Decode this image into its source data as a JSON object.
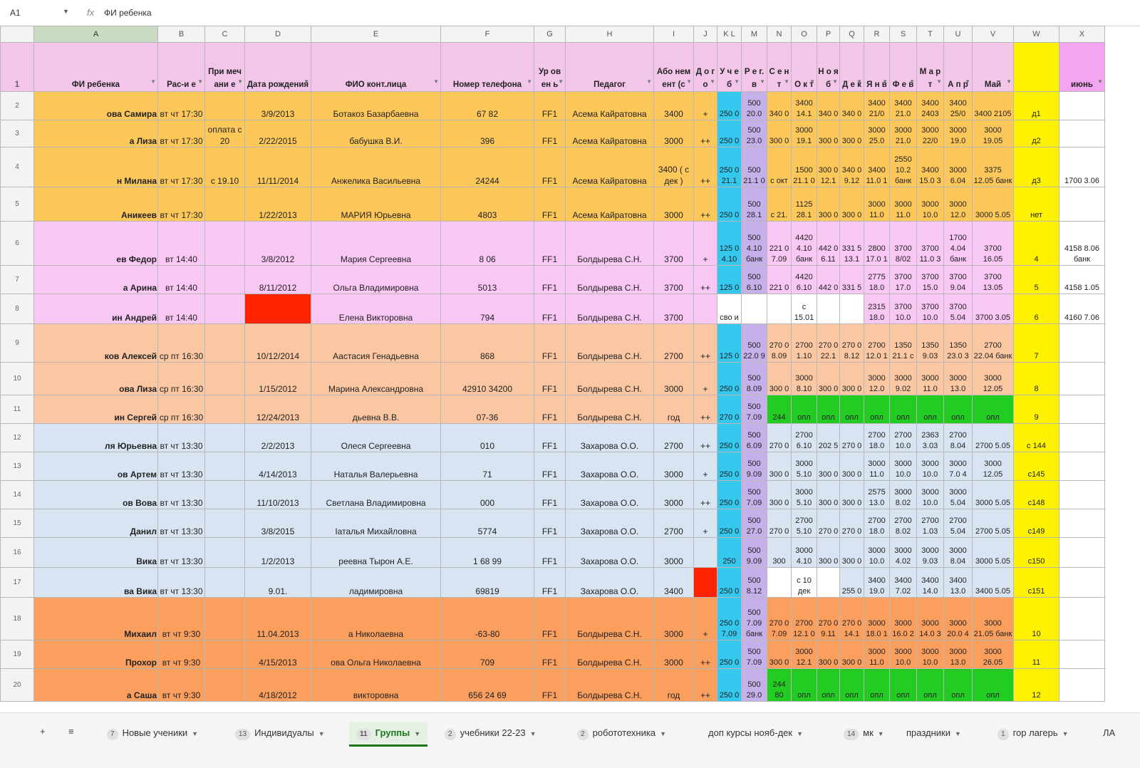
{
  "formula_bar": {
    "cell_ref": "A1",
    "formula": "ФИ ребенка"
  },
  "columns": [
    {
      "letter": "A",
      "w": 174
    },
    {
      "letter": "B",
      "w": 66
    },
    {
      "letter": "C",
      "w": 56
    },
    {
      "letter": "D",
      "w": 93
    },
    {
      "letter": "E",
      "w": 182
    },
    {
      "letter": "F",
      "w": 131
    },
    {
      "letter": "G",
      "w": 44
    },
    {
      "letter": "H",
      "w": 124
    },
    {
      "letter": "I",
      "w": 56
    },
    {
      "letter": "J",
      "w": 33
    },
    {
      "letter": "K L",
      "w": 34
    },
    {
      "letter": "M",
      "w": 36
    },
    {
      "letter": "N",
      "w": 34
    },
    {
      "letter": "O",
      "w": 36
    },
    {
      "letter": "P",
      "w": 32
    },
    {
      "letter": "Q",
      "w": 34
    },
    {
      "letter": "R",
      "w": 36
    },
    {
      "letter": "S",
      "w": 38
    },
    {
      "letter": "T",
      "w": 38
    },
    {
      "letter": "U",
      "w": 40
    },
    {
      "letter": "V",
      "w": 58
    },
    {
      "letter": "W",
      "w": 64
    },
    {
      "letter": "X",
      "w": 64
    }
  ],
  "header": [
    "ФИ ребенка",
    "Рас-и е",
    "При меч ани е",
    "Дата рождения",
    "ФИО конт.лица",
    "Номер телефона",
    "Ур ов ен ь",
    "Педагог",
    "Або нем ент (с",
    "Д о г о",
    "У ч е б",
    "Р е г. в",
    "С е н т",
    "О к т",
    "Н о я б",
    "Д е к",
    "Я н в",
    "Ф е в",
    "М а р т",
    "А п р",
    "Май",
    "",
    "июнь"
  ],
  "rows": [
    {
      "num": "2",
      "color": "#fdc75a",
      "cells": [
        "ова Самира",
        "вт чт 17:30",
        "",
        "3/9/2013",
        "Ботакоз Базарбаевна",
        "67 82",
        "FF1",
        "Асема Кайратовна",
        "3400",
        "+",
        "250 0",
        "500 20.0",
        "340 0",
        "3400 14.1",
        "340 0",
        "340 0",
        "3400 21/0",
        "3400 21.0",
        "3400 2403",
        "3400 25/0",
        "3400 2105",
        "д1",
        ""
      ]
    },
    {
      "num": "3",
      "color": "#fdc75a",
      "cells": [
        "а Лиза",
        "вт чт 17:30",
        "оплата с 20",
        "2/22/2015",
        "бабушка В.И.",
        "396",
        "FF1",
        "Асема Кайратовна",
        "3000",
        "++",
        "250 0",
        "500 23.0",
        "300 0",
        "3000 19.1",
        "300 0",
        "300 0",
        "3000 25.0",
        "3000 21.0",
        "3000 22/0",
        "3000 19.0",
        "3000 19.05",
        "д2",
        ""
      ]
    },
    {
      "num": "4",
      "color": "#fdc75a",
      "cells": [
        "н Милана",
        "вт чт 17:30",
        "с 19.10",
        "11/11/2014",
        "Анжелика Васильевна",
        "24244",
        "FF1",
        "Асема Кайратовна",
        "3400 ( с дек )",
        "++",
        "250 0 21.1",
        "500 21.1 0",
        "с окт",
        "1500 21.1 0",
        "300 0 12.1",
        "340 0 9.12",
        "3400 11.0 1",
        "2550 10.2 банк",
        "3400 15.0 3",
        "3000 6.04",
        "3375 12.05 банк",
        "д3",
        "1700 3.06"
      ]
    },
    {
      "num": "5",
      "color": "#fdc75a",
      "cells": [
        "Аникеев",
        "вт чт 17:30",
        "",
        "1/22/2013",
        "МАРИЯ Юрьевна",
        "4803",
        "FF1",
        "Асема Кайратовна",
        "3000",
        "++",
        "250 0",
        "500 28.1",
        "с 21.",
        "1125 28.1",
        "300 0",
        "300 0",
        "3000 11.0",
        "3000 11.0",
        "3000 10.0",
        "3000 12.0",
        "3000 5.05",
        "нет",
        ""
      ]
    },
    {
      "num": "6",
      "color": "#f9c7f3",
      "cells": [
        "ев Федор",
        "вт 14:40",
        "",
        "3/8/2012",
        "Мария Сергеевна",
        "8 06",
        "FF1",
        "Болдырева С.Н.",
        "3700",
        "+",
        "125 0 4.10",
        "500 4.10 банк",
        "221 0 7.09",
        "4420 4.10 банк",
        "442 0 6.11",
        "331 5 13.1",
        "2800 17.0 1",
        "3700 8/02",
        "3700 11.0 3",
        "1700 4.04 банк",
        "3700 16.05",
        "4",
        "4158 8.06 банк"
      ]
    },
    {
      "num": "7",
      "color": "#f9c7f3",
      "cells": [
        "а Арина",
        "вт 14:40",
        "",
        "8/11/2012",
        "Ольга Владимировна",
        "5013",
        "FF1",
        "Болдырева С.Н.",
        "3700",
        "++",
        "125 0",
        "500 6.10",
        "221 0",
        "4420 6.10",
        "442 0",
        "331 5",
        "2775 18.0",
        "3700 17.0",
        "3700 15.0",
        "3700 9.04",
        "3700 13.05",
        "5",
        "4158 1.05"
      ]
    },
    {
      "num": "8",
      "color": "#f9c7f3",
      "cells": [
        "ин Андрей",
        "вт 14:40",
        "",
        "",
        "Елена Викторовна",
        "794",
        "FF1",
        "Болдырева С.Н.",
        "3700",
        "",
        "сво и",
        "",
        "",
        "с 15.01",
        "",
        "",
        "2315 18.0",
        "3700 10.0",
        "3700 10.0",
        "3700 5.04",
        "3700 3.05",
        "6",
        "4160 7.06"
      ]
    },
    {
      "num": "9",
      "color": "#fac7a2",
      "cells": [
        "ков Алексей",
        "ср пт 16:30",
        "",
        "10/12/2014",
        "Аастасия Генадьевна",
        "868",
        "FF1",
        "Болдырева С.Н.",
        "2700",
        "++",
        "125 0",
        "500 22.0 9",
        "270 0 8.09",
        "2700 1.10",
        "270 0 22.1",
        "270 0 8.12",
        "2700 12.0 1",
        "1350 21.1 с",
        "1350 9.03",
        "1350 23.0 3",
        "2700 22.04 банк",
        "7",
        ""
      ]
    },
    {
      "num": "10",
      "color": "#fac7a2",
      "cells": [
        "ова Лиза",
        "ср пт 16:30",
        "",
        "1/15/2012",
        "Марина Александровна",
        "42910 34200",
        "FF1",
        "Болдырева С.Н.",
        "3000",
        "+",
        "250 0",
        "500 8.09",
        "300 0",
        "3000 8.10",
        "300 0",
        "300 0",
        "3000 12.0",
        "3000 9.02",
        "3000 11.0",
        "3000 13.0",
        "3000 12.05",
        "8",
        ""
      ]
    },
    {
      "num": "11",
      "color": "#fac7a2",
      "cells": [
        "ин Сергей",
        "ср пт 16:30",
        "",
        "12/24/2013",
        "дьевна В.В.",
        "07-36",
        "FF1",
        "Болдырева С.Н.",
        "год",
        "++",
        "270 0",
        "500 7.09",
        "244",
        "опл",
        "опл",
        "опл",
        "опл",
        "опл",
        "опл",
        "опл",
        "опл",
        "9",
        ""
      ]
    },
    {
      "num": "12",
      "color": "#d9e4f2",
      "cells": [
        "ля Юрьевна",
        "вт чт 13:30",
        "",
        "2/2/2013",
        "Олеся Сергеевна",
        "010",
        "FF1",
        "Захарова О.О.",
        "2700",
        "++",
        "250 0",
        "500 6.09",
        "270 0",
        "2700 6.10",
        "202 5",
        "270 0",
        "2700 18.0",
        "2700 10.0",
        "2363 3.03",
        "2700 8.04",
        "2700 5.05",
        "с 144",
        ""
      ]
    },
    {
      "num": "13",
      "color": "#d9e4f2",
      "cells": [
        "ов Артем",
        "вт чт 13:30",
        "",
        "4/14/2013",
        "Наталья Валерьевна",
        "71",
        "FF1",
        "Захарова О.О.",
        "3000",
        "+",
        "250 0",
        "500 9.09",
        "300 0",
        "3000 5.10",
        "300 0",
        "300 0",
        "3000 11.0",
        "3000 10.0",
        "3000 10.0",
        "3000 7.0 4",
        "3000 12.05",
        "с145",
        ""
      ]
    },
    {
      "num": "14",
      "color": "#d9e4f2",
      "cells": [
        "ов Вова",
        "вт чт 13:30",
        "",
        "11/10/2013",
        "Светлана Владимировна",
        "000",
        "FF1",
        "Захарова О.О.",
        "3000",
        "++",
        "250 0",
        "500 7.09",
        "300 0",
        "3000 5.10",
        "300 0",
        "300 0",
        "2575 13.0",
        "3000 8.02",
        "3000 10.0",
        "3000 5.04",
        "3000 5.05",
        "с148",
        ""
      ]
    },
    {
      "num": "15",
      "color": "#d9e4f2",
      "cells": [
        "Данил",
        "вт чт 13:30",
        "",
        "3/8/2015",
        "Іаталья Михайловна",
        "5774",
        "FF1",
        "Захарова О.О.",
        "2700",
        "+",
        "250 0",
        "500 27.0",
        "270 0",
        "2700 5.10",
        "270 0",
        "270 0",
        "2700 18.0",
        "2700 8.02",
        "2700 1.03",
        "2700 5.04",
        "2700 5.05",
        "с149",
        ""
      ]
    },
    {
      "num": "16",
      "color": "#d9e4f2",
      "cells": [
        "Вика",
        "вт чт 13:30",
        "",
        "1/2/2013",
        "реевна Тырон А.Е.",
        "1 68 99",
        "FF1",
        "Захарова О.О.",
        "3000",
        "",
        "250",
        "500 9.09",
        "300",
        "3000 4.10",
        "300 0",
        "300 0",
        "3000 10.0",
        "3000 4.02",
        "3000 9.03",
        "3000 8.04",
        "3000 5.05",
        "с150",
        ""
      ]
    },
    {
      "num": "17",
      "color": "#d9e4f2",
      "cells": [
        "ва Вика",
        "вт чт 13:30",
        "",
        "9.01.",
        "ладимировна",
        "69819",
        "FF1",
        "Захарова О.О.",
        "3400",
        "",
        "250 0",
        "500 8.12",
        "",
        "с 10 дек",
        "",
        "255 0",
        "3400 19.0",
        "3400 7.02",
        "3400 14.0",
        "3400 13.0",
        "3400 5.05",
        "с151",
        ""
      ]
    },
    {
      "num": "18",
      "color": "#fb9f5f",
      "cells": [
        "Михаил",
        "вт чт 9:30",
        "",
        "11.04.2013",
        "а Николаевна",
        "-63-80",
        "FF1",
        "Болдырева С.Н.",
        "3000",
        "+",
        "250 0 7.09",
        "500 7.09 банк",
        "270 0 7.09",
        "2700 12.1 0",
        "270 0 9.11",
        "270 0 14.1",
        "3000 18.0 1",
        "3000 16.0 2",
        "3000 14.0 3",
        "3000 20.0 4",
        "3000 21.05 банк",
        "10",
        ""
      ]
    },
    {
      "num": "19",
      "color": "#fb9f5f",
      "cells": [
        "Прохор",
        "вт чт 9:30",
        "",
        "4/15/2013",
        "ова Ольга Николаевна",
        "709",
        "FF1",
        "Болдырева С.Н.",
        "3000",
        "++",
        "250 0",
        "500 7.09",
        "300 0",
        "3000 12.1",
        "300 0",
        "300 0",
        "3000 11.0",
        "3000 10.0",
        "3000 10.0",
        "3000 13.0",
        "3000 26.05",
        "11",
        ""
      ]
    },
    {
      "num": "20",
      "color": "#fb9f5f",
      "cells": [
        "а Саша",
        "вт чт 9:30",
        "",
        "4/18/2012",
        "викторовна",
        "656 24 69",
        "FF1",
        "Болдырева С.Н.",
        "год",
        "++",
        "250 0",
        "500 29.0",
        "244 80",
        "опл",
        "опл",
        "опл",
        "опл",
        "опл",
        "опл",
        "опл",
        "опл",
        "12",
        ""
      ]
    }
  ],
  "tabs": {
    "add_label": "+",
    "menu_label": "≡",
    "sheets": [
      {
        "badge": "7",
        "name": "Новые ученики",
        "active": false
      },
      {
        "badge": "13",
        "name": "Индивидуалы",
        "active": false
      },
      {
        "badge": "11",
        "name": "Группы",
        "active": true
      },
      {
        "badge": "2",
        "name": "учебники 22-23",
        "active": false
      },
      {
        "badge": "2",
        "name": "робототехника",
        "active": false
      },
      {
        "badge": "",
        "name": "доп курсы нояб-дек",
        "active": false
      },
      {
        "badge": "14",
        "name": "мк",
        "active": false
      },
      {
        "badge": "",
        "name": "праздники",
        "active": false
      },
      {
        "badge": "1",
        "name": "гор лагерь",
        "active": false
      },
      {
        "badge": "",
        "name": "ЛА",
        "active": false
      }
    ]
  },
  "colors": {
    "cyan": "#34c8ee",
    "lavender": "#c6b0ea",
    "yellow": "#fff200",
    "red": "#ff2200",
    "green": "#22cc22"
  }
}
